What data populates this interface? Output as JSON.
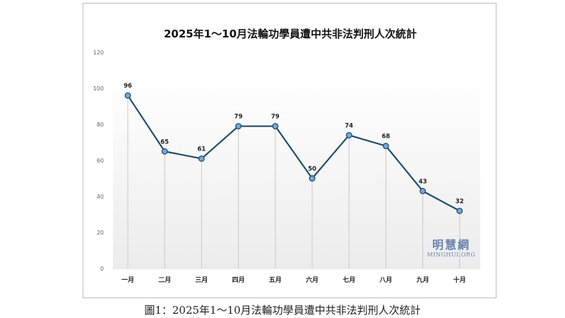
{
  "chart_data": {
    "type": "line",
    "title": "2025年1～10月法輪功學員遭中共非法判刑人次統計",
    "categories": [
      "一月",
      "二月",
      "三月",
      "四月",
      "五月",
      "六月",
      "七月",
      "八月",
      "九月",
      "十月"
    ],
    "series": [
      {
        "values": [
          96,
          65,
          61,
          79,
          79,
          50,
          74,
          68,
          43,
          32
        ]
      }
    ],
    "yticks": [
      0,
      20,
      40,
      60,
      80,
      100,
      120
    ],
    "ylim": [
      0,
      120
    ],
    "xlabel": "",
    "ylabel": "",
    "data_labels": true,
    "grid": "vertical drop lines",
    "colors": {
      "line": "#1f4e6b",
      "marker": "#7aa7d6",
      "droplines": "#c8c8c8",
      "axis_text": "#666666"
    }
  },
  "watermark": {
    "cn": "明慧網",
    "en": "MINGHUI.ORG"
  },
  "caption": "圖1：2025年1～10月法輪功學員遭中共非法判刑人次統計"
}
